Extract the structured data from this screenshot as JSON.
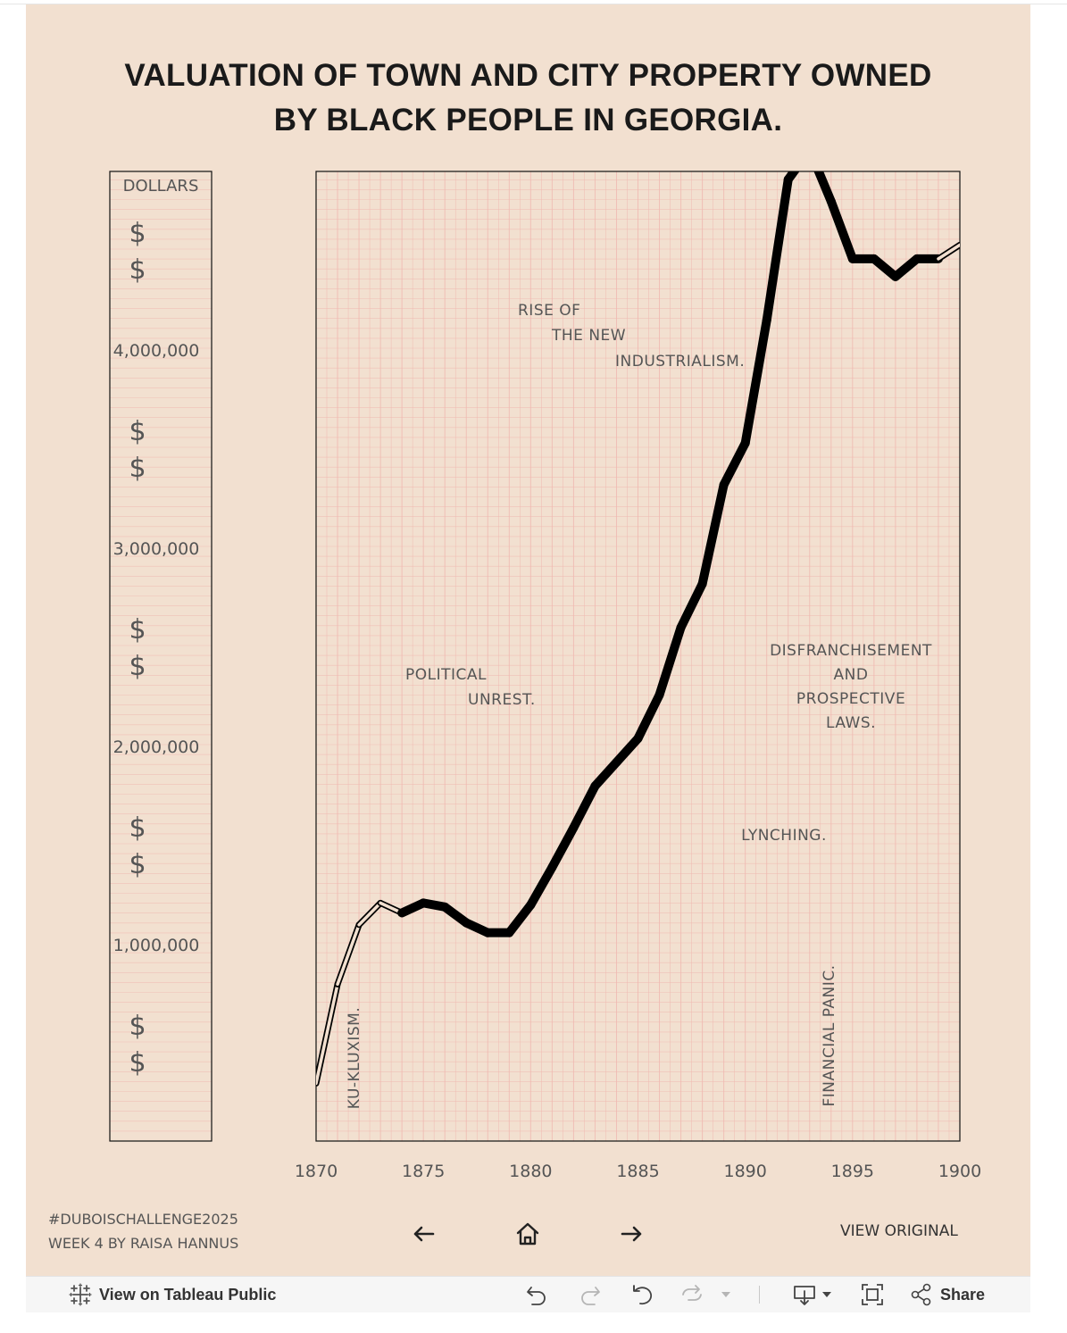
{
  "title_line1": "VALUATION OF TOWN AND CITY PROPERTY OWNED",
  "title_line2": "BY BLACK PEOPLE IN GEORGIA.",
  "dollar_symbol": "$",
  "colors": {
    "background": "#f2e0d0",
    "grid": "#f0b8b0",
    "line": "#000000",
    "text": "#555555",
    "title": "#1a1a1a"
  },
  "chart_data": {
    "type": "line",
    "title": "VALUATION OF TOWN AND CITY PROPERTY OWNED BY BLACK PEOPLE IN GEORGIA.",
    "xlabel": "",
    "ylabel": "DOLLARS",
    "xlim": [
      1870,
      1900
    ],
    "ylim": [
      0,
      4900000
    ],
    "x_ticks": [
      1870,
      1875,
      1880,
      1885,
      1890,
      1895,
      1900
    ],
    "y_ticks": [
      1000000,
      2000000,
      3000000,
      4000000
    ],
    "y_tick_labels": [
      "1,000,000",
      "2,000,000",
      "3,000,000",
      "4,000,000"
    ],
    "grid": true,
    "x": [
      1870,
      1871,
      1872,
      1873,
      1874,
      1875,
      1876,
      1877,
      1878,
      1879,
      1880,
      1881,
      1882,
      1883,
      1884,
      1885,
      1886,
      1887,
      1888,
      1889,
      1890,
      1891,
      1892,
      1893,
      1894,
      1895,
      1896,
      1897,
      1898,
      1899,
      1900
    ],
    "values": [
      300000,
      800000,
      1100000,
      1210000,
      1160000,
      1210000,
      1190000,
      1110000,
      1060000,
      1060000,
      1200000,
      1390000,
      1590000,
      1800000,
      1920000,
      2040000,
      2260000,
      2600000,
      2820000,
      3320000,
      3530000,
      4150000,
      4860000,
      5010000,
      4750000,
      4460000,
      4460000,
      4370000,
      4460000,
      4460000,
      4530000
    ],
    "outlined_years": [
      1870,
      1871,
      1872,
      1873,
      1874,
      1899,
      1900
    ],
    "annotations": [
      {
        "lines": [
          "KU-KLUXISM."
        ],
        "orientation": "vertical"
      },
      {
        "lines": [
          "POLITICAL",
          "UNREST."
        ],
        "orientation": "horizontal"
      },
      {
        "lines": [
          "RISE OF",
          "THE NEW",
          "INDUSTRIALISM."
        ],
        "orientation": "horizontal"
      },
      {
        "lines": [
          "DISFRANCHISEMENT",
          "AND",
          "PROSPECTIVE",
          "LAWS."
        ],
        "orientation": "horizontal"
      },
      {
        "lines": [
          "LYNCHING."
        ],
        "orientation": "horizontal"
      },
      {
        "lines": [
          "FINANCIAL PANIC."
        ],
        "orientation": "vertical"
      }
    ]
  },
  "footer": {
    "line1": "#DUBOISCHALLENGE2025",
    "line2": "WEEK 4 BY RAISA HANNUS",
    "view_original": "VIEW ORIGINAL"
  },
  "toolbar": {
    "view_on": "View on Tableau Public",
    "share": "Share"
  },
  "icons": {
    "prev": "arrow-left-icon",
    "home": "home-icon",
    "next": "arrow-right-icon",
    "tableau": "tableau-logo-icon",
    "undo": "undo-icon",
    "redo": "redo-icon",
    "revert": "revert-icon",
    "refresh": "refresh-icon",
    "download": "download-icon",
    "fullscreen": "fullscreen-icon",
    "share": "share-icon"
  }
}
